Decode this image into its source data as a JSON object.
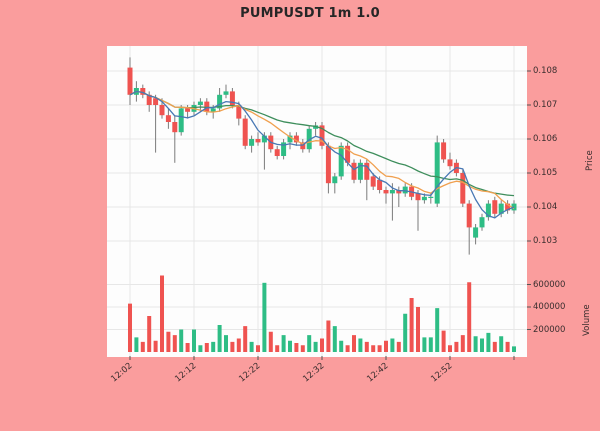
{
  "title": "PUMPUSDT 1m 1.0",
  "chart_data": {
    "type": "candlestick",
    "title": "PUMPUSDT 1m 1.0",
    "legend": "none",
    "grid": true,
    "price_axis": {
      "label": "Price",
      "side": "right",
      "ticks": [
        0.108,
        0.107,
        0.106,
        0.105,
        0.104,
        0.103
      ],
      "range": [
        0.10235,
        0.10875
      ]
    },
    "volume_axis": {
      "label": "Volume",
      "side": "right",
      "ticks": [
        600000,
        400000,
        200000
      ],
      "range": [
        0,
        760000
      ]
    },
    "x_axis": {
      "tick_labels": [
        "12:02",
        "12:12",
        "12:22",
        "12:32",
        "12:42",
        "12:52"
      ],
      "tick_minutes_step": 10
    },
    "moving_averages": [
      {
        "name": "mav-fast",
        "window": 5,
        "color": "#4878b4"
      },
      {
        "name": "mav-mid",
        "window": 10,
        "color": "#f0a04f"
      },
      {
        "name": "mav-slow",
        "window": 20,
        "color": "#3e8e5c"
      }
    ],
    "colors": {
      "background": "#fa9d9d",
      "plot_background": "#fdfdfd",
      "grid": "#e7e7e7",
      "up": "#2ebd85",
      "down": "#ef5350",
      "wick": "#7a7a7a",
      "tick_text": "#3a2e2e",
      "title_text": "#262626"
    },
    "candles": [
      {
        "t": "12:02",
        "o": 0.1081,
        "h": 0.1084,
        "l": 0.107,
        "c": 0.1073,
        "v": 430000
      },
      {
        "t": "12:03",
        "o": 0.1073,
        "h": 0.1077,
        "l": 0.1071,
        "c": 0.1075,
        "v": 130000
      },
      {
        "t": "12:04",
        "o": 0.1075,
        "h": 0.1076,
        "l": 0.1072,
        "c": 0.1073,
        "v": 90000
      },
      {
        "t": "12:05",
        "o": 0.1073,
        "h": 0.1074,
        "l": 0.1068,
        "c": 0.107,
        "v": 320000
      },
      {
        "t": "12:06",
        "o": 0.1072,
        "h": 0.1073,
        "l": 0.1056,
        "c": 0.107,
        "v": 100000
      },
      {
        "t": "12:07",
        "o": 0.107,
        "h": 0.1072,
        "l": 0.1066,
        "c": 0.1067,
        "v": 680000
      },
      {
        "t": "12:08",
        "o": 0.1067,
        "h": 0.1069,
        "l": 0.1063,
        "c": 0.1065,
        "v": 180000
      },
      {
        "t": "12:09",
        "o": 0.1065,
        "h": 0.1067,
        "l": 0.1053,
        "c": 0.1062,
        "v": 150000
      },
      {
        "t": "12:10",
        "o": 0.1062,
        "h": 0.107,
        "l": 0.1061,
        "c": 0.1069,
        "v": 200000
      },
      {
        "t": "12:11",
        "o": 0.1069,
        "h": 0.107,
        "l": 0.1066,
        "c": 0.1068,
        "v": 80000
      },
      {
        "t": "12:12",
        "o": 0.1068,
        "h": 0.1071,
        "l": 0.1067,
        "c": 0.107,
        "v": 200000
      },
      {
        "t": "12:13",
        "o": 0.107,
        "h": 0.1072,
        "l": 0.1068,
        "c": 0.1071,
        "v": 60000
      },
      {
        "t": "12:14",
        "o": 0.1071,
        "h": 0.1072,
        "l": 0.1067,
        "c": 0.1068,
        "v": 80000
      },
      {
        "t": "12:15",
        "o": 0.1068,
        "h": 0.107,
        "l": 0.1066,
        "c": 0.1069,
        "v": 90000
      },
      {
        "t": "12:16",
        "o": 0.1069,
        "h": 0.1075,
        "l": 0.1068,
        "c": 0.1073,
        "v": 240000
      },
      {
        "t": "12:17",
        "o": 0.1073,
        "h": 0.1076,
        "l": 0.1072,
        "c": 0.1074,
        "v": 150000
      },
      {
        "t": "12:18",
        "o": 0.1074,
        "h": 0.1075,
        "l": 0.1069,
        "c": 0.107,
        "v": 90000
      },
      {
        "t": "12:19",
        "o": 0.107,
        "h": 0.1071,
        "l": 0.1064,
        "c": 0.1066,
        "v": 120000
      },
      {
        "t": "12:20",
        "o": 0.1066,
        "h": 0.1067,
        "l": 0.1057,
        "c": 0.1058,
        "v": 230000
      },
      {
        "t": "12:21",
        "o": 0.1058,
        "h": 0.1061,
        "l": 0.1056,
        "c": 0.106,
        "v": 90000
      },
      {
        "t": "12:22",
        "o": 0.106,
        "h": 0.1062,
        "l": 0.1058,
        "c": 0.1059,
        "v": 60000
      },
      {
        "t": "12:23",
        "o": 0.1059,
        "h": 0.1062,
        "l": 0.1051,
        "c": 0.1061,
        "v": 615000
      },
      {
        "t": "12:24",
        "o": 0.1061,
        "h": 0.1062,
        "l": 0.1056,
        "c": 0.1057,
        "v": 180000
      },
      {
        "t": "12:25",
        "o": 0.1057,
        "h": 0.1058,
        "l": 0.1054,
        "c": 0.1055,
        "v": 60000
      },
      {
        "t": "12:26",
        "o": 0.1055,
        "h": 0.106,
        "l": 0.1054,
        "c": 0.1059,
        "v": 150000
      },
      {
        "t": "12:27",
        "o": 0.1059,
        "h": 0.1062,
        "l": 0.1057,
        "c": 0.1061,
        "v": 100000
      },
      {
        "t": "12:28",
        "o": 0.1061,
        "h": 0.1062,
        "l": 0.1058,
        "c": 0.1059,
        "v": 80000
      },
      {
        "t": "12:29",
        "o": 0.1059,
        "h": 0.106,
        "l": 0.1056,
        "c": 0.1057,
        "v": 60000
      },
      {
        "t": "12:30",
        "o": 0.1057,
        "h": 0.1064,
        "l": 0.1056,
        "c": 0.1063,
        "v": 150000
      },
      {
        "t": "12:31",
        "o": 0.1063,
        "h": 0.1065,
        "l": 0.1061,
        "c": 0.1064,
        "v": 90000
      },
      {
        "t": "12:32",
        "o": 0.1064,
        "h": 0.1065,
        "l": 0.1057,
        "c": 0.1058,
        "v": 120000
      },
      {
        "t": "12:33",
        "o": 0.1058,
        "h": 0.1059,
        "l": 0.1044,
        "c": 0.1047,
        "v": 280000
      },
      {
        "t": "12:34",
        "o": 0.1047,
        "h": 0.105,
        "l": 0.1044,
        "c": 0.1049,
        "v": 230000
      },
      {
        "t": "12:35",
        "o": 0.1049,
        "h": 0.1059,
        "l": 0.1048,
        "c": 0.1058,
        "v": 100000
      },
      {
        "t": "12:36",
        "o": 0.1058,
        "h": 0.1059,
        "l": 0.1052,
        "c": 0.1053,
        "v": 60000
      },
      {
        "t": "12:37",
        "o": 0.1053,
        "h": 0.1054,
        "l": 0.1047,
        "c": 0.1048,
        "v": 150000
      },
      {
        "t": "12:38",
        "o": 0.1048,
        "h": 0.1054,
        "l": 0.1047,
        "c": 0.1053,
        "v": 120000
      },
      {
        "t": "12:39",
        "o": 0.1053,
        "h": 0.1054,
        "l": 0.1042,
        "c": 0.1048,
        "v": 90000
      },
      {
        "t": "12:40",
        "o": 0.1049,
        "h": 0.105,
        "l": 0.1045,
        "c": 0.1046,
        "v": 60000
      },
      {
        "t": "12:41",
        "o": 0.1048,
        "h": 0.1049,
        "l": 0.1044,
        "c": 0.1045,
        "v": 60000
      },
      {
        "t": "12:42",
        "o": 0.1045,
        "h": 0.1046,
        "l": 0.1041,
        "c": 0.1044,
        "v": 100000
      },
      {
        "t": "12:43",
        "o": 0.1044,
        "h": 0.1047,
        "l": 0.1036,
        "c": 0.1045,
        "v": 120000
      },
      {
        "t": "12:44",
        "o": 0.1045,
        "h": 0.1046,
        "l": 0.104,
        "c": 0.1044,
        "v": 90000
      },
      {
        "t": "12:45",
        "o": 0.1044,
        "h": 0.1047,
        "l": 0.1043,
        "c": 0.1046,
        "v": 340000
      },
      {
        "t": "12:46",
        "o": 0.1046,
        "h": 0.1047,
        "l": 0.1042,
        "c": 0.1043,
        "v": 480000
      },
      {
        "t": "12:47",
        "o": 0.1044,
        "h": 0.1045,
        "l": 0.1033,
        "c": 0.1042,
        "v": 400000
      },
      {
        "t": "12:48",
        "o": 0.1042,
        "h": 0.1044,
        "l": 0.1041,
        "c": 0.1043,
        "v": 130000
      },
      {
        "t": "12:49",
        "o": 0.1043,
        "h": 0.1044,
        "l": 0.1041,
        "c": 0.1043,
        "v": 130000
      },
      {
        "t": "12:50",
        "o": 0.1041,
        "h": 0.1061,
        "l": 0.104,
        "c": 0.1059,
        "v": 390000
      },
      {
        "t": "12:51",
        "o": 0.1059,
        "h": 0.106,
        "l": 0.1053,
        "c": 0.1054,
        "v": 190000
      },
      {
        "t": "12:52",
        "o": 0.1054,
        "h": 0.1056,
        "l": 0.1051,
        "c": 0.1052,
        "v": 60000
      },
      {
        "t": "12:53",
        "o": 0.1053,
        "h": 0.1054,
        "l": 0.1049,
        "c": 0.105,
        "v": 90000
      },
      {
        "t": "12:54",
        "o": 0.105,
        "h": 0.1051,
        "l": 0.104,
        "c": 0.1041,
        "v": 150000
      },
      {
        "t": "12:55",
        "o": 0.1041,
        "h": 0.1042,
        "l": 0.1026,
        "c": 0.1034,
        "v": 620000
      },
      {
        "t": "12:56",
        "o": 0.1031,
        "h": 0.1035,
        "l": 0.1029,
        "c": 0.1034,
        "v": 140000
      },
      {
        "t": "12:57",
        "o": 0.1034,
        "h": 0.1038,
        "l": 0.1033,
        "c": 0.1037,
        "v": 120000
      },
      {
        "t": "12:58",
        "o": 0.1037,
        "h": 0.1042,
        "l": 0.1036,
        "c": 0.1041,
        "v": 170000
      },
      {
        "t": "12:59",
        "o": 0.1042,
        "h": 0.1043,
        "l": 0.1037,
        "c": 0.1038,
        "v": 90000
      },
      {
        "t": "13:00",
        "o": 0.1038,
        "h": 0.1042,
        "l": 0.1037,
        "c": 0.1041,
        "v": 140000
      },
      {
        "t": "13:01",
        "o": 0.1041,
        "h": 0.1042,
        "l": 0.1038,
        "c": 0.1039,
        "v": 90000
      },
      {
        "t": "13:02",
        "o": 0.1039,
        "h": 0.1042,
        "l": 0.1038,
        "c": 0.1041,
        "v": 50000
      }
    ]
  }
}
